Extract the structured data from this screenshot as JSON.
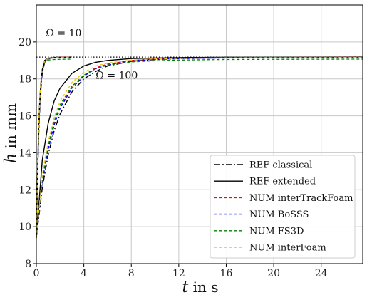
{
  "chart_data": {
    "type": "line",
    "xlabel_main": "t",
    "xlabel_rest": " in s",
    "ylabel_main": "h",
    "ylabel_rest": " in mm",
    "xlim": [
      0,
      27.5
    ],
    "ylim": [
      8,
      22
    ],
    "xticks": [
      0,
      4,
      8,
      12,
      16,
      20,
      24
    ],
    "yticks": [
      8,
      10,
      12,
      14,
      16,
      18,
      20
    ],
    "grid": true,
    "legend_position": "lower-right",
    "reference_line": {
      "y": 19.18,
      "style": "dotted",
      "color": "#000000"
    },
    "annotations": [
      {
        "text": "Ω = 10",
        "x": 0.8,
        "y": 20.3
      },
      {
        "text": "Ω = 100",
        "x": 5.0,
        "y": 18.0
      }
    ],
    "series": [
      {
        "name": "REF classical",
        "color": "#000000",
        "dash": "8,3,2,3",
        "width": 1.4,
        "x": [
          0,
          0.5,
          1,
          1.5,
          2,
          3,
          4,
          5,
          6,
          8,
          10,
          12,
          14,
          16,
          20,
          24,
          27.5
        ],
        "y": [
          9.4,
          12.1,
          13.9,
          15.2,
          16.1,
          17.3,
          18.0,
          18.4,
          18.7,
          18.95,
          19.05,
          19.1,
          19.12,
          19.14,
          19.16,
          19.17,
          19.17
        ]
      },
      {
        "name": "REF extended",
        "color": "#000000",
        "dash": "",
        "width": 1.4,
        "x": [
          0,
          0.5,
          1,
          1.5,
          2,
          3,
          4,
          5,
          6,
          8,
          10,
          12,
          16,
          20,
          27.5
        ],
        "y": [
          9.4,
          13.6,
          15.6,
          16.8,
          17.5,
          18.3,
          18.7,
          18.9,
          19.0,
          19.1,
          19.13,
          19.15,
          19.17,
          19.17,
          19.18
        ]
      },
      {
        "name": "NUM interTrackFoam",
        "color": "#ff0000",
        "dash": "4,3",
        "width": 1.3,
        "x": [
          0,
          0.5,
          1,
          1.5,
          2,
          3,
          4,
          5,
          6,
          8,
          10,
          12,
          16,
          20,
          27.5
        ],
        "y": [
          9.4,
          12.5,
          14.3,
          15.6,
          16.5,
          17.6,
          18.2,
          18.6,
          18.8,
          19.0,
          19.08,
          19.12,
          19.14,
          19.16,
          19.17
        ]
      },
      {
        "name": "NUM BoSSS",
        "color": "#0000ff",
        "dash": "4,3",
        "width": 1.3,
        "x": [
          0,
          0.5,
          1,
          1.5,
          2,
          3,
          4,
          5,
          6,
          8,
          10,
          12,
          16,
          20,
          27.5
        ],
        "y": [
          9.4,
          12.4,
          14.2,
          15.5,
          16.4,
          17.5,
          18.15,
          18.55,
          18.75,
          18.98,
          19.06,
          19.1,
          19.13,
          19.15,
          19.16
        ]
      },
      {
        "name": "NUM FS3D",
        "color": "#008000",
        "dash": "4,3",
        "width": 1.3,
        "x": [
          0,
          0.5,
          1,
          1.5,
          2,
          3,
          4,
          5,
          6,
          8,
          10,
          12,
          16,
          20,
          27.5
        ],
        "y": [
          9.4,
          12.6,
          14.4,
          15.7,
          16.6,
          17.6,
          18.2,
          18.55,
          18.75,
          18.92,
          18.98,
          19.02,
          19.05,
          19.06,
          19.07
        ]
      },
      {
        "name": "NUM interFoam",
        "color": "#e6c619",
        "dash": "4,3",
        "width": 1.3,
        "x": [
          0,
          0.5,
          1,
          1.5,
          2,
          3,
          4,
          5,
          6,
          8,
          10,
          12,
          16,
          20,
          27.5
        ],
        "y": [
          9.4,
          12.8,
          14.6,
          15.9,
          16.8,
          17.8,
          18.35,
          18.7,
          18.85,
          19.02,
          19.08,
          19.11,
          19.14,
          19.15,
          19.16
        ]
      },
      {
        "name": "",
        "color": "#000000",
        "dash": "8,3,2,3",
        "width": 1.4,
        "x": [
          0,
          0.1,
          0.2,
          0.3,
          0.4,
          0.5,
          0.7,
          1.0,
          1.5,
          2.0,
          3.0
        ],
        "y": [
          9.4,
          12.6,
          15.0,
          16.6,
          17.6,
          18.3,
          18.9,
          19.1,
          19.15,
          19.17,
          19.18
        ]
      },
      {
        "name": "",
        "color": "#000000",
        "dash": "",
        "width": 1.4,
        "x": [
          0,
          0.1,
          0.2,
          0.3,
          0.4,
          0.5,
          0.7,
          1.0,
          1.5,
          2.0,
          3.0
        ],
        "y": [
          9.4,
          13.0,
          15.5,
          17.0,
          17.9,
          18.5,
          19.0,
          19.12,
          19.16,
          19.17,
          19.18
        ]
      },
      {
        "name": "",
        "color": "#ff0000",
        "dash": "4,3",
        "width": 1.3,
        "x": [
          0,
          0.1,
          0.2,
          0.3,
          0.4,
          0.5,
          0.7,
          1.0,
          1.5,
          2.0,
          3.0
        ],
        "y": [
          9.4,
          12.8,
          15.2,
          16.8,
          17.8,
          18.4,
          18.95,
          19.1,
          19.15,
          19.17,
          19.18
        ]
      },
      {
        "name": "",
        "color": "#0000ff",
        "dash": "4,3",
        "width": 1.3,
        "x": [
          0,
          0.1,
          0.2,
          0.3,
          0.4,
          0.5,
          0.7,
          1.0,
          1.5,
          2.0,
          3.0
        ],
        "y": [
          9.4,
          12.7,
          15.1,
          16.7,
          17.7,
          18.35,
          18.92,
          19.08,
          19.14,
          19.16,
          19.17
        ]
      },
      {
        "name": "",
        "color": "#008000",
        "dash": "4,3",
        "width": 1.3,
        "x": [
          0,
          0.1,
          0.2,
          0.3,
          0.4,
          0.5,
          0.7,
          1.0,
          1.5,
          2.0,
          3.0
        ],
        "y": [
          9.4,
          12.9,
          15.3,
          16.9,
          17.9,
          18.45,
          18.9,
          19.02,
          19.05,
          19.06,
          19.07
        ]
      },
      {
        "name": "",
        "color": "#e6c619",
        "dash": "4,3",
        "width": 1.3,
        "x": [
          0,
          0.1,
          0.2,
          0.3,
          0.4,
          0.5,
          0.7,
          1.0,
          1.5,
          2.0,
          3.0
        ],
        "y": [
          9.4,
          13.1,
          15.5,
          17.0,
          18.0,
          18.5,
          18.98,
          19.1,
          19.14,
          19.16,
          19.17
        ]
      }
    ],
    "legend": [
      {
        "label": "REF classical",
        "color": "#000000",
        "dash": "8,3,2,3"
      },
      {
        "label": "REF extended",
        "color": "#000000",
        "dash": ""
      },
      {
        "label": "NUM interTrackFoam",
        "color": "#ff0000",
        "dash": "4,3"
      },
      {
        "label": "NUM BoSSS",
        "color": "#0000ff",
        "dash": "4,3"
      },
      {
        "label": "NUM FS3D",
        "color": "#008000",
        "dash": "4,3"
      },
      {
        "label": "NUM interFoam",
        "color": "#e6c619",
        "dash": "4,3"
      }
    ]
  }
}
